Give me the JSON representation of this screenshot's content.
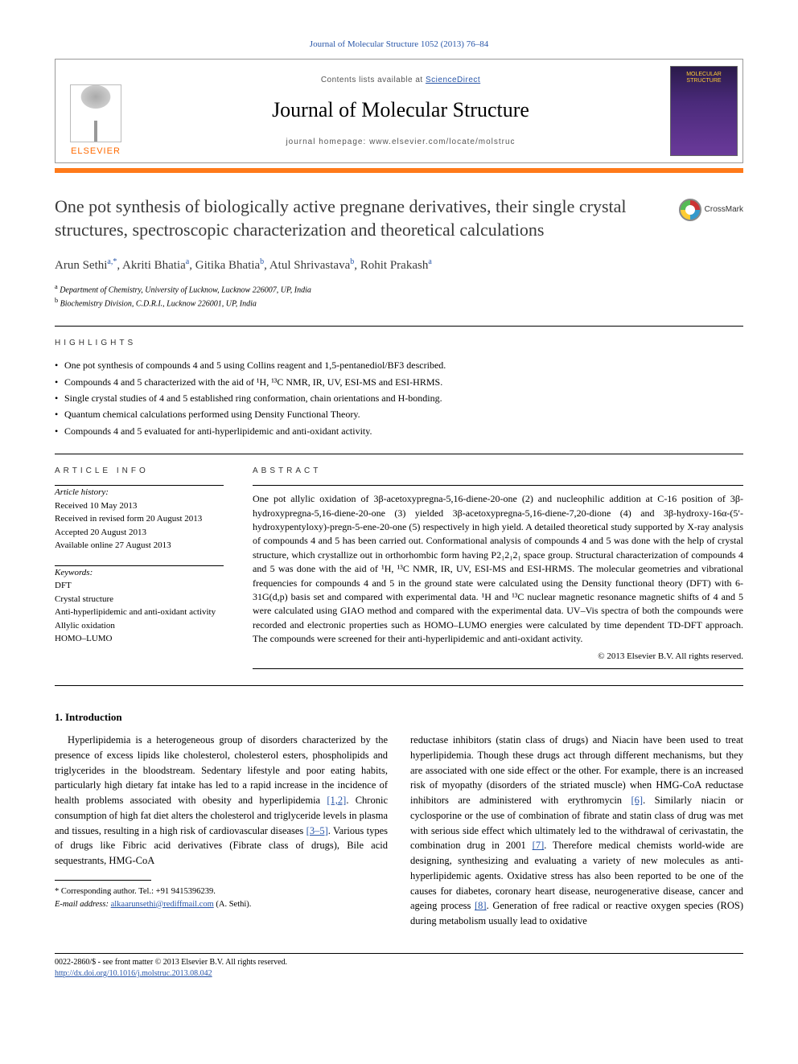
{
  "journal_ref": "Journal of Molecular Structure 1052 (2013) 76–84",
  "header": {
    "contents_prefix": "Contents lists available at ",
    "contents_link": "ScienceDirect",
    "journal_name": "Journal of Molecular Structure",
    "homepage_prefix": "journal homepage: ",
    "homepage_url": "www.elsevier.com/locate/molstruc",
    "publisher_label": "ELSEVIER",
    "cover_label": "MOLECULAR STRUCTURE"
  },
  "crossmark_label": "CrossMark",
  "title": "One pot synthesis of biologically active pregnane derivatives, their single crystal structures, spectroscopic characterization and theoretical calculations",
  "authors_html": "Arun Sethi<sup>a,*</sup>, Akriti Bhatia<sup>a</sup>, Gitika Bhatia<sup>b</sup>, Atul Shrivastava<sup>b</sup>, Rohit Prakash<sup>a</sup>",
  "affiliations": [
    {
      "marker": "a",
      "text": "Department of Chemistry, University of Lucknow, Lucknow 226007, UP, India"
    },
    {
      "marker": "b",
      "text": "Biochemistry Division, C.D.R.I., Lucknow 226001, UP, India"
    }
  ],
  "highlights_label": "HIGHLIGHTS",
  "highlights": [
    "One pot synthesis of compounds 4 and 5 using Collins reagent and 1,5-pentanediol/BF3 described.",
    "Compounds 4 and 5 characterized with the aid of ¹H, ¹³C NMR, IR, UV, ESI-MS and ESI-HRMS.",
    "Single crystal studies of 4 and 5 established ring conformation, chain orientations and H-bonding.",
    "Quantum chemical calculations performed using Density Functional Theory.",
    "Compounds 4 and 5 evaluated for anti-hyperlipidemic and anti-oxidant activity."
  ],
  "article_info_label": "ARTICLE INFO",
  "abstract_label": "ABSTRACT",
  "history": {
    "label": "Article history:",
    "received": "Received 10 May 2013",
    "revised": "Received in revised form 20 August 2013",
    "accepted": "Accepted 20 August 2013",
    "online": "Available online 27 August 2013"
  },
  "keywords_label": "Keywords:",
  "keywords": [
    "DFT",
    "Crystal structure",
    "Anti-hyperlipidemic and anti-oxidant activity",
    "Allylic oxidation",
    "HOMO–LUMO"
  ],
  "abstract": "One pot allylic oxidation of 3β-acetoxypregna-5,16-diene-20-one (2) and nucleophilic addition at C-16 position of 3β-hydroxypregna-5,16-diene-20-one (3) yielded 3β-acetoxypregna-5,16-diene-7,20-dione (4) and 3β-hydroxy-16α-(5′-hydroxypentyloxy)-pregn-5-ene-20-one (5) respectively in high yield. A detailed theoretical study supported by X-ray analysis of compounds 4 and 5 has been carried out. Conformational analysis of compounds 4 and 5 was done with the help of crystal structure, which crystallize out in orthorhombic form having P2₁2₁2₁ space group. Structural characterization of compounds 4 and 5 was done with the aid of ¹H, ¹³C NMR, IR, UV, ESI-MS and ESI-HRMS. The molecular geometries and vibrational frequencies for compounds 4 and 5 in the ground state were calculated using the Density functional theory (DFT) with 6-31G(d,p) basis set and compared with experimental data. ¹H and ¹³C nuclear magnetic resonance magnetic shifts of 4 and 5 were calculated using GIAO method and compared with the experimental data. UV–Vis spectra of both the compounds were recorded and electronic properties such as HOMO–LUMO energies were calculated by time dependent TD-DFT approach. The compounds were screened for their anti-hyperlipidemic and anti-oxidant activity.",
  "copyright": "© 2013 Elsevier B.V. All rights reserved.",
  "intro_heading": "1. Introduction",
  "intro_para_1": "Hyperlipidemia is a heterogeneous group of disorders characterized by the presence of excess lipids like cholesterol, cholesterol esters, phospholipids and triglycerides in the bloodstream. Sedentary lifestyle and poor eating habits, particularly high dietary fat intake has led to a rapid increase in the incidence of health problems associated with obesity and hyperlipidemia ",
  "intro_ref_1": "[1,2]",
  "intro_para_1b": ". Chronic consumption of high fat diet alters the cholesterol and triglyceride levels in plasma and tissues, resulting in a high risk of cardiovascular diseases ",
  "intro_ref_2": "[3–5]",
  "intro_para_1c": ". Various types of drugs like Fibric acid derivatives (Fibrate class of drugs), Bile acid sequestrants, HMG-CoA",
  "intro_para_2a": "reductase inhibitors (statin class of drugs) and Niacin have been used to treat hyperlipidemia. Though these drugs act through different mechanisms, but they are associated with one side effect or the other. For example, there is an increased risk of myopathy (disorders of the striated muscle) when HMG-CoA reductase inhibitors are administered with erythromycin ",
  "intro_ref_3": "[6]",
  "intro_para_2b": ". Similarly niacin or cyclosporine or the use of combination of fibrate and statin class of drug was met with serious side effect which ultimately led to the withdrawal of cerivastatin, the combination drug in 2001 ",
  "intro_ref_4": "[7]",
  "intro_para_2c": ". Therefore medical chemists world-wide are designing, synthesizing and evaluating a variety of new molecules as anti-hyperlipidemic agents. Oxidative stress has also been reported to be one of the causes for diabetes, coronary heart disease, neurogenerative disease, cancer and ageing process ",
  "intro_ref_5": "[8]",
  "intro_para_2d": ". Generation of free radical or reactive oxygen species (ROS) during metabolism usually lead to oxidative",
  "corr_author": "* Corresponding author. Tel.: +91 9415396239.",
  "corr_email_label": "E-mail address:",
  "corr_email": "alkaarunsethi@rediffmail.com",
  "corr_name": "(A. Sethi).",
  "footer": {
    "issn": "0022-2860/$ - see front matter © 2013 Elsevier B.V. All rights reserved.",
    "doi": "http://dx.doi.org/10.1016/j.molstruc.2013.08.042"
  },
  "colors": {
    "link": "#2956a8",
    "accent": "#ff7a1a",
    "elsevier": "#ff6a00"
  }
}
